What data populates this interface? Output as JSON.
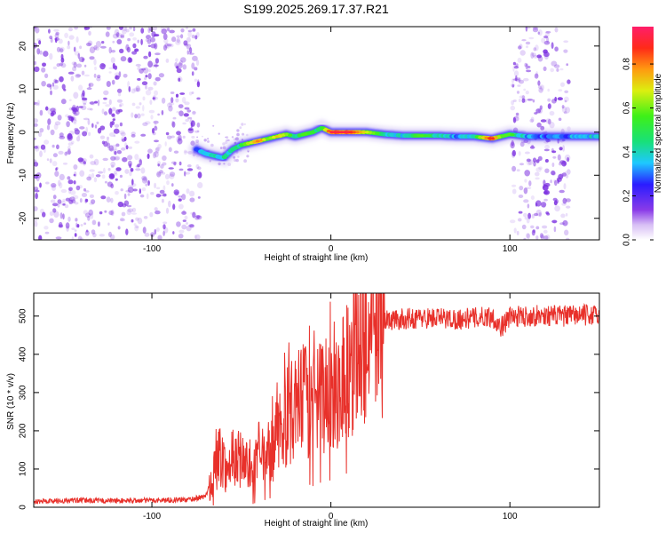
{
  "title": "S199.2025.269.17.37.R21",
  "colors": {
    "snr_line": "#e8302a",
    "axis": "#000000",
    "speckle": "#7b2fe0",
    "ridge_cool": "#1ec8ff",
    "ridge_hot": "#e0183c"
  },
  "chart_data": [
    {
      "id": "spectrogram",
      "type": "heatmap",
      "title": "S199.2025.269.17.37.R21",
      "xlabel": "Height of straight line (km)",
      "ylabel": "Frequency (Hz)",
      "xlim": [
        -166,
        150
      ],
      "ylim": [
        -25,
        24.5
      ],
      "xticks": [
        -100,
        0,
        100
      ],
      "yticks": [
        -20,
        -10,
        0,
        10,
        20
      ],
      "colorbar": {
        "label": "Normalized spectral amplitude",
        "range": [
          0,
          0.97
        ],
        "ticks": [
          "0.0",
          "0.2",
          "0.4",
          "0.6",
          "0.8"
        ],
        "tick_values": [
          0,
          0.2,
          0.4,
          0.6,
          0.8
        ]
      },
      "noise_regions": [
        {
          "x_start": -166,
          "x_end": -73
        },
        {
          "x_start": 101,
          "x_end": 133
        }
      ],
      "ridge": {
        "x": [
          -75,
          -70,
          -65,
          -60,
          -55,
          -50,
          -45,
          -40,
          -35,
          -30,
          -25,
          -20,
          -15,
          -10,
          -5,
          0,
          10,
          20,
          30,
          40,
          50,
          60,
          70,
          80,
          90,
          95,
          100,
          110,
          120,
          130,
          140,
          150
        ],
        "frequency": [
          -4,
          -5,
          -5.5,
          -6,
          -4,
          -3,
          -2.5,
          -2,
          -1.5,
          -1,
          -0.5,
          -1,
          -0.5,
          0,
          1,
          0,
          0,
          0,
          -0.5,
          -0.8,
          -0.8,
          -0.8,
          -1,
          -1,
          -1.5,
          -1,
          -0.5,
          -1,
          -1,
          -1,
          -1,
          -1
        ],
        "amplitude": [
          0.35,
          0.4,
          0.45,
          0.5,
          0.5,
          0.55,
          0.7,
          0.85,
          0.6,
          0.75,
          0.65,
          0.5,
          0.6,
          0.55,
          0.55,
          0.95,
          0.95,
          0.7,
          0.5,
          0.45,
          0.6,
          0.5,
          0.4,
          0.5,
          0.95,
          0.6,
          0.6,
          0.4,
          0.35,
          0.35,
          0.45,
          0.45
        ]
      }
    },
    {
      "id": "snr",
      "type": "line",
      "xlabel": "Height of straight line (km)",
      "ylabel": "SNR (10 * v/v)",
      "xlim": [
        -166,
        150
      ],
      "ylim": [
        0,
        560
      ],
      "xticks": [
        -100,
        0,
        100
      ],
      "yticks": [
        0,
        100,
        200,
        300,
        400,
        500
      ],
      "series": [
        {
          "name": "SNR",
          "x": [
            -166,
            -140,
            -120,
            -100,
            -80,
            -70,
            -65,
            -62,
            -58,
            -55,
            -50,
            -45,
            -40,
            -35,
            -30,
            -25,
            -20,
            -15,
            -10,
            -5,
            0,
            5,
            10,
            15,
            20,
            25,
            30,
            40,
            50,
            60,
            70,
            80,
            90,
            95,
            100,
            110,
            120,
            130,
            140,
            150
          ],
          "values": [
            15,
            18,
            17,
            18,
            20,
            28,
            95,
            140,
            95,
            105,
            135,
            90,
            120,
            140,
            180,
            235,
            255,
            285,
            255,
            290,
            305,
            330,
            375,
            420,
            455,
            475,
            488,
            492,
            495,
            495,
            492,
            495,
            500,
            470,
            498,
            500,
            502,
            500,
            503,
            502
          ]
        }
      ]
    }
  ]
}
